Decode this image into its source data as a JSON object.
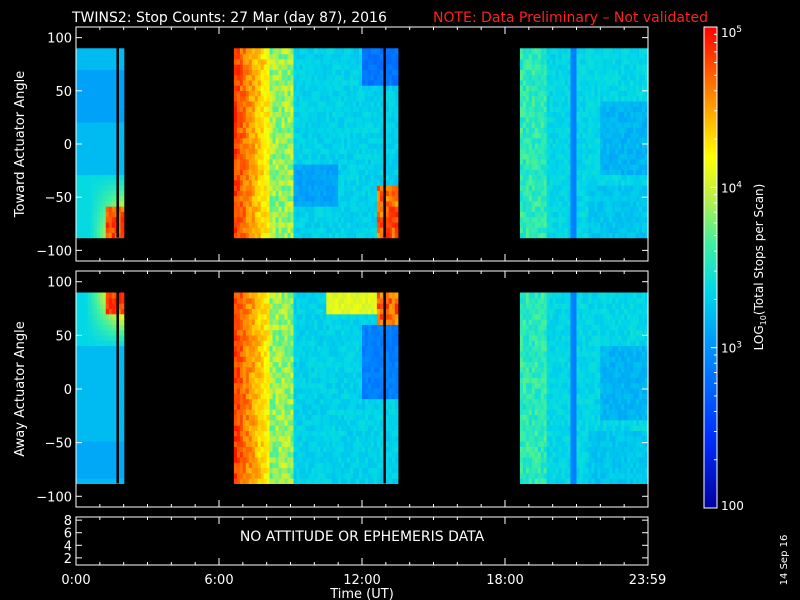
{
  "header": {
    "title": "TWINS2: Stop Counts: 27 Mar (day  87), 2016",
    "note": "NOTE: Data Preliminary – Not validated",
    "note_color": "#ff2020"
  },
  "chart_data": [
    {
      "type": "heatmap",
      "ylabel": "Toward Actuator Angle",
      "ylim": [
        -110,
        110
      ],
      "yticks": [
        "100",
        "50",
        "0",
        "−50",
        "−100"
      ],
      "ytick_values": [
        100,
        50,
        0,
        -50,
        -100
      ],
      "xlim_hours": [
        0,
        24
      ],
      "data_angle_range": [
        -88,
        90
      ],
      "data_intervals_hours": [
        [
          0,
          2.0
        ],
        [
          6.6,
          13.5
        ],
        [
          18.6,
          24
        ]
      ],
      "gap_lines_hours": [
        1.75,
        12.95
      ]
    },
    {
      "type": "heatmap",
      "ylabel": "Away Actuator Angle",
      "ylim": [
        -110,
        110
      ],
      "yticks": [
        "100",
        "50",
        "0",
        "−50",
        "−100"
      ],
      "ytick_values": [
        100,
        50,
        0,
        -50,
        -100
      ],
      "xlim_hours": [
        0,
        24
      ],
      "data_angle_range": [
        -88,
        90
      ],
      "data_intervals_hours": [
        [
          0,
          2.0
        ],
        [
          6.6,
          13.5
        ],
        [
          18.6,
          24
        ]
      ],
      "gap_lines_hours": [
        1.75,
        12.95
      ]
    }
  ],
  "ephemeris_panel": {
    "message": "NO ATTITUDE OR EPHEMERIS DATA",
    "yticks": [
      "8",
      "6",
      "4",
      "2"
    ],
    "ytick_values": [
      8,
      6,
      4,
      2
    ]
  },
  "xaxis": {
    "label": "Time (UT)",
    "ticks": [
      "0:00",
      "6:00",
      "12:00",
      "18:00",
      "23:59"
    ],
    "tick_hours": [
      0,
      6,
      12,
      18,
      23.98
    ]
  },
  "colorbar": {
    "label_main": "LOG",
    "label_sub": "10",
    "label_rest": "(Total Stops per Scan)",
    "scale": "log",
    "range": [
      100,
      100000
    ],
    "ticks": [
      {
        "value": 100000,
        "main": "10",
        "sup": "5"
      },
      {
        "value": 10000,
        "main": "10",
        "sup": "4"
      },
      {
        "value": 1000,
        "main": "10",
        "sup": "3"
      },
      {
        "value": 100,
        "main": "100",
        "sup": ""
      }
    ]
  },
  "footer": {
    "date_stamp": "14 Sep 16"
  }
}
